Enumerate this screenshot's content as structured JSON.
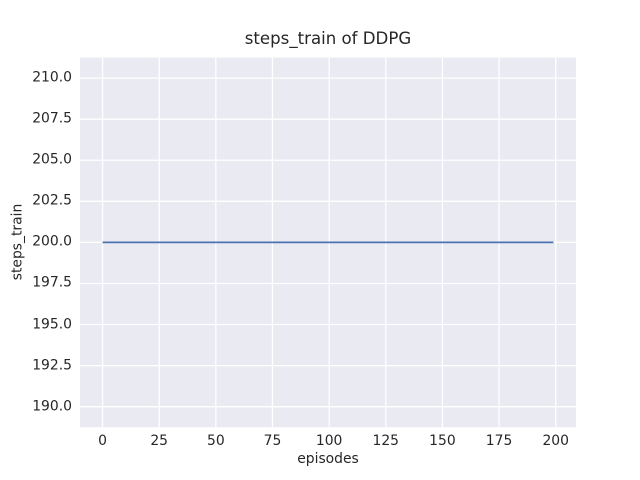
{
  "chart_data": {
    "type": "line",
    "title": "steps_train of DDPG",
    "xlabel": "episodes",
    "ylabel": "steps_train",
    "series": [
      {
        "name": "steps_train",
        "color": "#4c72b0",
        "x": [
          0,
          199
        ],
        "y": [
          200,
          200
        ],
        "description": "constant value 200 across all episodes 0-199"
      }
    ],
    "xticks": [
      0,
      25,
      50,
      75,
      100,
      125,
      150,
      175,
      200
    ],
    "xtick_labels": [
      "0",
      "25",
      "50",
      "75",
      "100",
      "125",
      "150",
      "175",
      "200"
    ],
    "yticks": [
      190.0,
      192.5,
      195.0,
      197.5,
      200.0,
      202.5,
      205.0,
      207.5,
      210.0
    ],
    "ytick_labels": [
      "190.0",
      "192.5",
      "195.0",
      "197.5",
      "200.0",
      "202.5",
      "205.0",
      "207.5",
      "210.0"
    ],
    "xlim": [
      -9.95,
      208.95
    ],
    "ylim": [
      188.75,
      211.25
    ],
    "grid": true,
    "legend": false,
    "plot_bg": "#eaeaf2",
    "grid_color": "#ffffff",
    "text_color": "#262626",
    "line_width": 1.8
  }
}
